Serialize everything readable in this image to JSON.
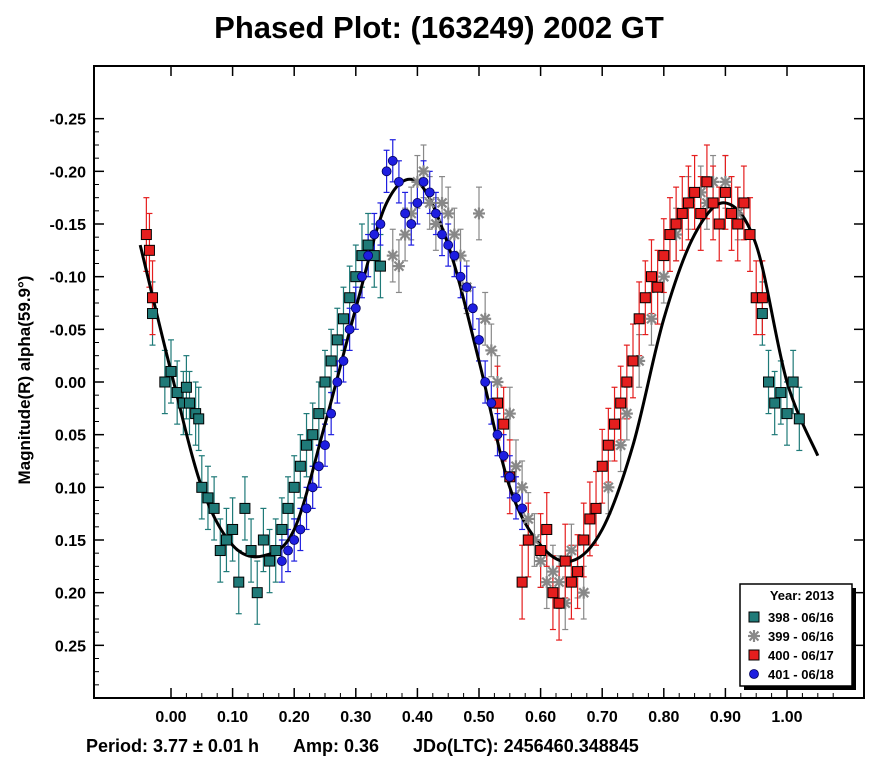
{
  "chart_data": {
    "type": "scatter",
    "title": "Phased Plot: (163249) 2002 GT",
    "ylabel": "Magnitude(R) alpha(59.9°)",
    "xlabel": "",
    "xlim": [
      -0.125,
      1.125
    ],
    "ylim": [
      -0.3,
      0.3
    ],
    "y_inverted": true,
    "x_ticks": [
      "0.00",
      "0.10",
      "0.20",
      "0.30",
      "0.40",
      "0.50",
      "0.60",
      "0.70",
      "0.80",
      "0.90",
      "1.00"
    ],
    "x_tick_values": [
      0.0,
      0.1,
      0.2,
      0.3,
      0.4,
      0.5,
      0.6,
      0.7,
      0.8,
      0.9,
      1.0
    ],
    "y_ticks": [
      "-0.25",
      "-0.20",
      "-0.15",
      "-0.10",
      "-0.05",
      "0.00",
      "0.05",
      "0.10",
      "0.15",
      "0.20",
      "0.25"
    ],
    "y_tick_values": [
      -0.25,
      -0.2,
      -0.15,
      -0.1,
      -0.05,
      0.0,
      0.05,
      0.1,
      0.15,
      0.2,
      0.25
    ],
    "grid": false,
    "legend": {
      "placement": "bottom-right",
      "title": "Year: 2013",
      "entries": [
        {
          "label": "398 - 06/16",
          "marker": "square",
          "color": "#1f7a78"
        },
        {
          "label": "399 - 06/16",
          "marker": "asterisk",
          "color": "#888888"
        },
        {
          "label": "400 - 06/17",
          "marker": "square",
          "color": "#e51e1e"
        },
        {
          "label": "401 - 06/18",
          "marker": "circle",
          "color": "#1e1ee0"
        }
      ]
    },
    "fit_curve": {
      "color": "#000000",
      "x": [
        -0.05,
        0.0,
        0.05,
        0.1,
        0.15,
        0.2,
        0.25,
        0.3,
        0.35,
        0.4,
        0.45,
        0.5,
        0.55,
        0.6,
        0.65,
        0.7,
        0.75,
        0.8,
        0.85,
        0.9,
        0.95,
        1.0,
        1.05
      ],
      "y": [
        -0.13,
        -0.01,
        0.1,
        0.155,
        0.165,
        0.14,
        0.04,
        -0.07,
        -0.17,
        -0.19,
        -0.13,
        -0.02,
        0.1,
        0.155,
        0.17,
        0.14,
        0.06,
        -0.06,
        -0.14,
        -0.17,
        -0.13,
        0.0,
        0.07
      ]
    },
    "series": [
      {
        "name": "398 - 06/16",
        "color": "#1f7a78",
        "marker": "square",
        "x": [
          -0.03,
          -0.01,
          0.0,
          0.01,
          0.02,
          0.025,
          0.03,
          0.04,
          0.045,
          0.05,
          0.06,
          0.07,
          0.08,
          0.09,
          0.1,
          0.11,
          0.12,
          0.13,
          0.14,
          0.15,
          0.16,
          0.17,
          0.18,
          0.19,
          0.2,
          0.21,
          0.22,
          0.23,
          0.24,
          0.25,
          0.26,
          0.27,
          0.28,
          0.29,
          0.3,
          0.31,
          0.32,
          0.33,
          0.34,
          0.96,
          0.97,
          0.98,
          0.99,
          1.0,
          1.01,
          1.02
        ],
        "y": [
          -0.065,
          0.0,
          -0.01,
          0.01,
          0.02,
          0.005,
          0.02,
          0.03,
          0.035,
          0.1,
          0.11,
          0.12,
          0.16,
          0.15,
          0.14,
          0.19,
          0.12,
          0.16,
          0.2,
          0.15,
          0.17,
          0.16,
          0.14,
          0.12,
          0.1,
          0.08,
          0.06,
          0.05,
          0.03,
          0.0,
          -0.02,
          -0.04,
          -0.06,
          -0.08,
          -0.1,
          -0.12,
          -0.13,
          -0.12,
          -0.11,
          -0.065,
          0.0,
          0.02,
          0.01,
          0.03,
          0.0,
          0.035
        ],
        "err": 0.03
      },
      {
        "name": "399 - 06/16",
        "color": "#888888",
        "marker": "asterisk",
        "x": [
          0.36,
          0.37,
          0.38,
          0.39,
          0.4,
          0.41,
          0.42,
          0.43,
          0.44,
          0.45,
          0.46,
          0.47,
          0.48,
          0.5,
          0.51,
          0.52,
          0.53,
          0.55,
          0.56,
          0.57,
          0.58,
          0.59,
          0.6,
          0.61,
          0.62,
          0.63,
          0.64,
          0.65,
          0.66,
          0.67,
          0.71,
          0.73,
          0.74,
          0.76,
          0.78,
          0.8,
          0.82,
          0.84,
          0.86,
          0.87,
          0.88,
          0.9,
          0.92
        ],
        "y": [
          -0.12,
          -0.11,
          -0.14,
          -0.16,
          -0.19,
          -0.2,
          -0.17,
          -0.15,
          -0.17,
          -0.16,
          -0.14,
          -0.12,
          -0.09,
          -0.16,
          -0.06,
          -0.03,
          0.0,
          0.03,
          0.08,
          0.1,
          0.13,
          0.15,
          0.17,
          0.19,
          0.18,
          0.19,
          0.21,
          0.16,
          0.18,
          0.2,
          0.1,
          0.06,
          0.03,
          -0.02,
          -0.06,
          -0.1,
          -0.14,
          -0.17,
          -0.18,
          -0.17,
          -0.19,
          -0.19,
          -0.16
        ],
        "err": 0.025
      },
      {
        "name": "400 - 06/17",
        "color": "#e51e1e",
        "marker": "square",
        "x": [
          -0.04,
          -0.035,
          -0.03,
          0.53,
          0.54,
          0.55,
          0.57,
          0.58,
          0.6,
          0.61,
          0.62,
          0.63,
          0.64,
          0.65,
          0.66,
          0.67,
          0.68,
          0.69,
          0.7,
          0.71,
          0.72,
          0.73,
          0.74,
          0.75,
          0.76,
          0.77,
          0.78,
          0.79,
          0.8,
          0.81,
          0.82,
          0.83,
          0.84,
          0.85,
          0.86,
          0.87,
          0.88,
          0.89,
          0.9,
          0.91,
          0.92,
          0.93,
          0.94,
          0.95,
          0.96
        ],
        "y": [
          -0.14,
          -0.125,
          -0.08,
          0.02,
          0.04,
          0.09,
          0.19,
          0.15,
          0.16,
          0.14,
          0.2,
          0.21,
          0.17,
          0.19,
          0.18,
          0.15,
          0.13,
          0.12,
          0.08,
          0.06,
          0.04,
          0.02,
          0.0,
          -0.02,
          -0.06,
          -0.08,
          -0.1,
          -0.09,
          -0.12,
          -0.14,
          -0.15,
          -0.16,
          -0.17,
          -0.18,
          -0.16,
          -0.19,
          -0.17,
          -0.15,
          -0.18,
          -0.16,
          -0.15,
          -0.17,
          -0.14,
          -0.08,
          -0.08
        ],
        "err": 0.035
      },
      {
        "name": "401 - 06/18",
        "color": "#1e1ee0",
        "marker": "circle",
        "x": [
          0.18,
          0.19,
          0.2,
          0.21,
          0.22,
          0.23,
          0.24,
          0.25,
          0.26,
          0.27,
          0.28,
          0.29,
          0.3,
          0.31,
          0.32,
          0.33,
          0.34,
          0.35,
          0.36,
          0.37,
          0.38,
          0.39,
          0.4,
          0.41,
          0.42,
          0.43,
          0.44,
          0.45,
          0.46,
          0.47,
          0.48,
          0.49,
          0.5,
          0.51,
          0.52,
          0.53,
          0.54,
          0.55,
          0.56,
          0.57
        ],
        "y": [
          0.17,
          0.16,
          0.15,
          0.14,
          0.12,
          0.1,
          0.08,
          0.06,
          0.03,
          0.0,
          -0.02,
          -0.05,
          -0.07,
          -0.1,
          -0.12,
          -0.14,
          -0.15,
          -0.2,
          -0.21,
          -0.19,
          -0.16,
          -0.15,
          -0.17,
          -0.19,
          -0.18,
          -0.16,
          -0.14,
          -0.13,
          -0.12,
          -0.1,
          -0.09,
          -0.07,
          -0.04,
          0.0,
          0.02,
          0.05,
          0.07,
          0.09,
          0.11,
          0.12
        ],
        "err": 0.02
      }
    ],
    "footer": {
      "period": "Period: 3.77 ± 0.01 h",
      "amp": "Amp: 0.36",
      "jdo": "JDo(LTC): 2456460.348845"
    }
  }
}
